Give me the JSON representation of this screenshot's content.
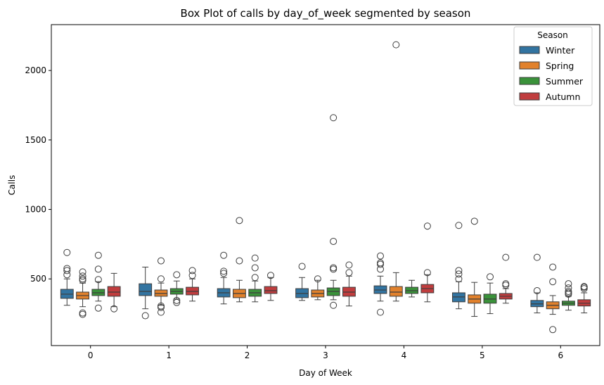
{
  "chart_data": {
    "type": "box",
    "title": "Box Plot of calls by day_of_week segmented by season",
    "xlabel": "Day of Week",
    "ylabel": "Calls",
    "categories": [
      "0",
      "1",
      "2",
      "3",
      "4",
      "5",
      "6"
    ],
    "ylim": [
      20,
      2330
    ],
    "yticks": [
      500,
      1000,
      1500,
      2000
    ],
    "legend": {
      "title": "Season",
      "position": "top-right"
    },
    "series": [
      {
        "name": "Winter",
        "color": "#3274a1",
        "boxes": [
          {
            "whislo": 310,
            "q1": 360,
            "med": 390,
            "q3": 425,
            "whishi": 500,
            "fliers": [
              530,
              560,
              575,
              690
            ]
          },
          {
            "whislo": 285,
            "q1": 380,
            "med": 410,
            "q3": 465,
            "whishi": 585,
            "fliers": [
              235
            ]
          },
          {
            "whislo": 320,
            "q1": 370,
            "med": 400,
            "q3": 430,
            "whishi": 510,
            "fliers": [
              540,
              555,
              670
            ]
          },
          {
            "whislo": 345,
            "q1": 365,
            "med": 395,
            "q3": 430,
            "whishi": 510,
            "fliers": [
              590
            ]
          },
          {
            "whislo": 340,
            "q1": 395,
            "med": 420,
            "q3": 450,
            "whishi": 520,
            "fliers": [
              260,
              570,
              605,
              615,
              665
            ]
          },
          {
            "whislo": 285,
            "q1": 335,
            "med": 370,
            "q3": 400,
            "whishi": 480,
            "fliers": [
              500,
              535,
              560,
              885
            ]
          },
          {
            "whislo": 255,
            "q1": 300,
            "med": 320,
            "q3": 345,
            "whishi": 400,
            "fliers": [
              415,
              655
            ]
          }
        ]
      },
      {
        "name": "Spring",
        "color": "#e1812c",
        "boxes": [
          {
            "whislo": 300,
            "q1": 355,
            "med": 380,
            "q3": 405,
            "whishi": 470,
            "fliers": [
              245,
              255,
              490,
              500,
              520,
              550
            ]
          },
          {
            "whislo": 310,
            "q1": 375,
            "med": 395,
            "q3": 420,
            "whishi": 470,
            "fliers": [
              260,
              295,
              305,
              500,
              630
            ]
          },
          {
            "whislo": 335,
            "q1": 365,
            "med": 395,
            "q3": 425,
            "whishi": 490,
            "fliers": [
              630,
              920
            ]
          },
          {
            "whislo": 350,
            "q1": 370,
            "med": 395,
            "q3": 420,
            "whishi": 490,
            "fliers": [
              500
            ]
          },
          {
            "whislo": 340,
            "q1": 375,
            "med": 405,
            "q3": 445,
            "whishi": 545,
            "fliers": [
              2185
            ]
          },
          {
            "whislo": 230,
            "q1": 325,
            "med": 355,
            "q3": 385,
            "whishi": 475,
            "fliers": [
              915
            ]
          },
          {
            "whislo": 245,
            "q1": 285,
            "med": 310,
            "q3": 335,
            "whishi": 380,
            "fliers": [
              135,
              480,
              585
            ]
          }
        ]
      },
      {
        "name": "Summer",
        "color": "#3a923a",
        "boxes": [
          {
            "whislo": 340,
            "q1": 380,
            "med": 400,
            "q3": 425,
            "whishi": 480,
            "fliers": [
              290,
              495,
              570,
              670
            ]
          },
          {
            "whislo": 355,
            "q1": 390,
            "med": 410,
            "q3": 430,
            "whishi": 485,
            "fliers": [
              330,
              345,
              530
            ]
          },
          {
            "whislo": 335,
            "q1": 375,
            "med": 400,
            "q3": 425,
            "whishi": 485,
            "fliers": [
              510,
              580,
              650
            ]
          },
          {
            "whislo": 350,
            "q1": 380,
            "med": 410,
            "q3": 435,
            "whishi": 490,
            "fliers": [
              310,
              570,
              580,
              770,
              1660
            ]
          },
          {
            "whislo": 370,
            "q1": 395,
            "med": 415,
            "q3": 440,
            "whishi": 490,
            "fliers": []
          },
          {
            "whislo": 250,
            "q1": 325,
            "med": 355,
            "q3": 390,
            "whishi": 470,
            "fliers": [
              515
            ]
          },
          {
            "whislo": 275,
            "q1": 310,
            "med": 325,
            "q3": 340,
            "whishi": 375,
            "fliers": [
              390,
              400,
              410,
              435,
              465
            ]
          }
        ]
      },
      {
        "name": "Autumn",
        "color": "#c03d3e",
        "boxes": [
          {
            "whislo": 300,
            "q1": 375,
            "med": 405,
            "q3": 445,
            "whishi": 540,
            "fliers": [
              285
            ]
          },
          {
            "whislo": 340,
            "q1": 385,
            "med": 410,
            "q3": 440,
            "whishi": 500,
            "fliers": [
              525,
              560
            ]
          },
          {
            "whislo": 345,
            "q1": 395,
            "med": 415,
            "q3": 445,
            "whishi": 510,
            "fliers": [
              525
            ]
          },
          {
            "whislo": 305,
            "q1": 375,
            "med": 405,
            "q3": 440,
            "whishi": 520,
            "fliers": [
              545,
              600
            ]
          },
          {
            "whislo": 335,
            "q1": 400,
            "med": 430,
            "q3": 460,
            "whishi": 530,
            "fliers": [
              545,
              880
            ]
          },
          {
            "whislo": 325,
            "q1": 355,
            "med": 375,
            "q3": 395,
            "whishi": 430,
            "fliers": [
              455,
              465,
              655
            ]
          },
          {
            "whislo": 255,
            "q1": 305,
            "med": 325,
            "q3": 350,
            "whishi": 400,
            "fliers": [
              430,
              440,
              445
            ]
          }
        ]
      }
    ]
  }
}
